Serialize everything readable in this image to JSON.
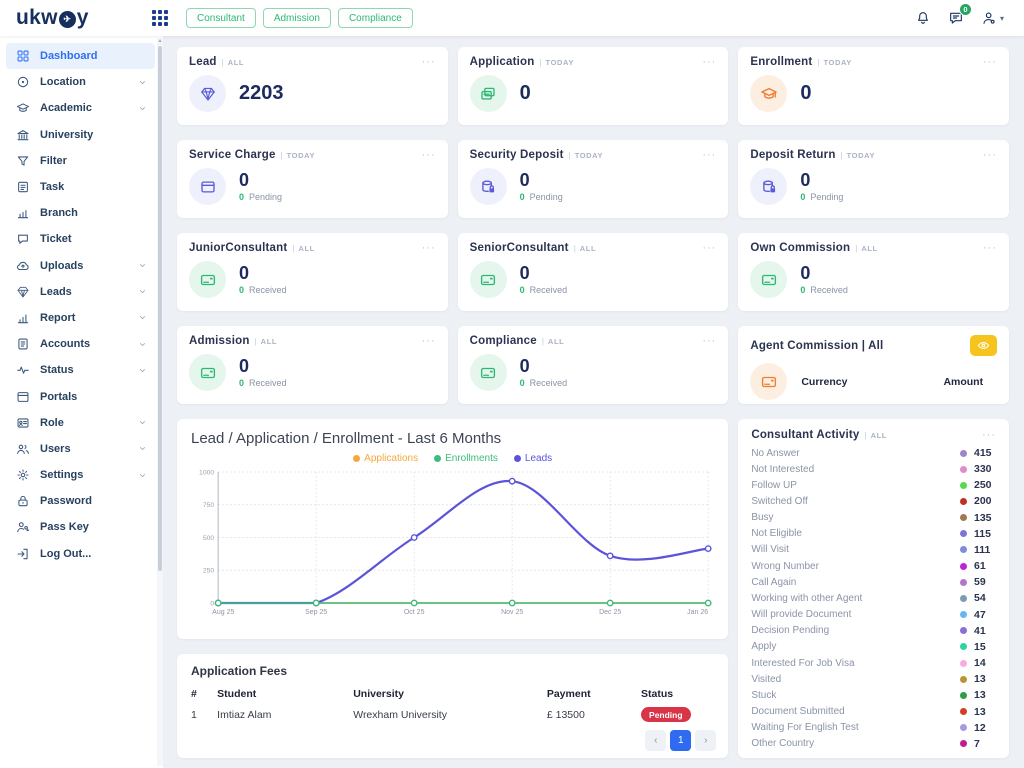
{
  "ui": {
    "menu_dots": "···",
    "scope_sep": "|",
    "sidebar_chevron": "chevron-down",
    "header_caret": "▾"
  },
  "header": {
    "logo": {
      "text_pre": "ukw",
      "text_post": "y",
      "bird_glyph": "✈"
    },
    "nav_buttons": [
      {
        "label": "Consultant"
      },
      {
        "label": "Admission"
      },
      {
        "label": "Compliance"
      }
    ],
    "icons": [
      "bell-icon",
      "chat-icon",
      "user-icon"
    ],
    "chat_badge": "0"
  },
  "sidebar": {
    "items": [
      {
        "label": "Dashboard",
        "icon": "dashboard",
        "active": true
      },
      {
        "label": "Location",
        "icon": "location",
        "chevron": true
      },
      {
        "label": "Academic",
        "icon": "academic",
        "chevron": true
      },
      {
        "label": "University",
        "icon": "university"
      },
      {
        "label": "Filter",
        "icon": "filter"
      },
      {
        "label": "Task",
        "icon": "task"
      },
      {
        "label": "Branch",
        "icon": "branch"
      },
      {
        "label": "Ticket",
        "icon": "ticket"
      },
      {
        "label": "Uploads",
        "icon": "uploads",
        "chevron": true
      },
      {
        "label": "Leads",
        "icon": "leads",
        "chevron": true
      },
      {
        "label": "Report",
        "icon": "report",
        "chevron": true
      },
      {
        "label": "Accounts",
        "icon": "accounts",
        "chevron": true
      },
      {
        "label": "Status",
        "icon": "status",
        "chevron": true
      },
      {
        "label": "Portals",
        "icon": "portals"
      },
      {
        "label": "Role",
        "icon": "role",
        "chevron": true
      },
      {
        "label": "Users",
        "icon": "users",
        "chevron": true
      },
      {
        "label": "Settings",
        "icon": "settings",
        "chevron": true
      },
      {
        "label": "Password",
        "icon": "password"
      },
      {
        "label": "Pass Key",
        "icon": "passkey"
      },
      {
        "label": "Log Out...",
        "icon": "logout"
      }
    ]
  },
  "stat_cards": [
    {
      "title": "Lead",
      "scope": "ALL",
      "value": "2203",
      "icon": "gem",
      "theme": "indigo"
    },
    {
      "title": "Application",
      "scope": "TODAY",
      "value": "0",
      "icon": "stack",
      "theme": "green"
    },
    {
      "title": "Enrollment",
      "scope": "TODAY",
      "value": "0",
      "icon": "gradcap",
      "theme": "orange"
    },
    {
      "title": "Service Charge",
      "scope": "TODAY",
      "value": "0",
      "sub_value": "0",
      "sub_label": "Pending",
      "icon": "wallet",
      "theme": "indigo"
    },
    {
      "title": "Security Deposit",
      "scope": "TODAY",
      "value": "0",
      "sub_value": "0",
      "sub_label": "Pending",
      "icon": "dblock",
      "theme": "indigo"
    },
    {
      "title": "Deposit Return",
      "scope": "TODAY",
      "value": "0",
      "sub_value": "0",
      "sub_label": "Pending",
      "icon": "dblock",
      "theme": "indigo"
    },
    {
      "title": "JuniorConsultant",
      "scope": "ALL",
      "value": "0",
      "sub_value": "0",
      "sub_label": "Received",
      "icon": "card",
      "theme": "green"
    },
    {
      "title": "SeniorConsultant",
      "scope": "ALL",
      "value": "0",
      "sub_value": "0",
      "sub_label": "Received",
      "icon": "card",
      "theme": "green"
    },
    {
      "title": "Own Commission",
      "scope": "ALL",
      "value": "0",
      "sub_value": "0",
      "sub_label": "Received",
      "icon": "card",
      "theme": "green"
    },
    {
      "title": "Admission",
      "scope": "ALL",
      "value": "0",
      "sub_value": "0",
      "sub_label": "Received",
      "icon": "card",
      "theme": "green"
    },
    {
      "title": "Compliance",
      "scope": "ALL",
      "value": "0",
      "sub_value": "0",
      "sub_label": "Received",
      "icon": "card",
      "theme": "green"
    }
  ],
  "agent": {
    "title": "Agent Commission | All",
    "columns": [
      "Currency",
      "Amount"
    ],
    "icon": "card",
    "theme": "orange",
    "eye_button_color": "#f6c51d"
  },
  "chart_data": {
    "type": "line",
    "title": "Lead / Application / Enrollment - Last 6 Months",
    "categories": [
      "Aug 25",
      "Sep 25",
      "Oct 25",
      "Nov 25",
      "Dec 25",
      "Jan 26"
    ],
    "yticks": [
      0,
      250,
      500,
      750,
      1000
    ],
    "ylim": [
      0,
      1000
    ],
    "grid": "dotted",
    "legend_position": "top-center",
    "series": [
      {
        "name": "Applications",
        "color": "#f5a83c",
        "values": [
          0,
          0,
          0,
          0,
          0,
          0
        ]
      },
      {
        "name": "Enrollments",
        "color": "#3dbd7d",
        "values": [
          0,
          0,
          0,
          0,
          0,
          0
        ]
      },
      {
        "name": "Leads",
        "color": "#5b54d9",
        "values": [
          0,
          0,
          500,
          930,
          360,
          415
        ]
      }
    ]
  },
  "activity": {
    "title": "Consultant Activity",
    "scope": "ALL",
    "items": [
      {
        "label": "No Answer",
        "value": "415",
        "color": "#9d85c6"
      },
      {
        "label": "Not Interested",
        "value": "330",
        "color": "#df8cc7"
      },
      {
        "label": "Follow UP",
        "value": "250",
        "color": "#55d94f"
      },
      {
        "label": "Switched Off",
        "value": "200",
        "color": "#bf3124"
      },
      {
        "label": "Busy",
        "value": "135",
        "color": "#a1794e"
      },
      {
        "label": "Not Eligible",
        "value": "115",
        "color": "#7d74da"
      },
      {
        "label": "Will Visit",
        "value": "111",
        "color": "#808cd8"
      },
      {
        "label": "Wrong Number",
        "value": "61",
        "color": "#bc23d4"
      },
      {
        "label": "Call Again",
        "value": "59",
        "color": "#b277cc"
      },
      {
        "label": "Working with other Agent",
        "value": "54",
        "color": "#7e9ab5"
      },
      {
        "label": "Will provide Document",
        "value": "47",
        "color": "#66b6f2"
      },
      {
        "label": "Decision Pending",
        "value": "41",
        "color": "#8a70d4"
      },
      {
        "label": "Apply",
        "value": "15",
        "color": "#2fd3a2"
      },
      {
        "label": "Interested For Job Visa",
        "value": "14",
        "color": "#f8abe2"
      },
      {
        "label": "Visited",
        "value": "13",
        "color": "#bb9336"
      },
      {
        "label": "Stuck",
        "value": "13",
        "color": "#2f9e48"
      },
      {
        "label": "Document Submitted",
        "value": "13",
        "color": "#d23c28"
      },
      {
        "label": "Waiting For English Test",
        "value": "12",
        "color": "#a79ade"
      },
      {
        "label": "Other Country",
        "value": "7",
        "color": "#bd1f92"
      }
    ]
  },
  "fees": {
    "title": "Application Fees",
    "headers": [
      "#",
      "Student",
      "University",
      "Payment",
      "Status"
    ],
    "rows": [
      {
        "num": "1",
        "student": "Imtiaz Alam",
        "university": "Wrexham University",
        "payment": "£ 13500",
        "status": "Pending"
      }
    ],
    "pagination": {
      "prev": "‹",
      "page": "1",
      "next": "›"
    }
  }
}
